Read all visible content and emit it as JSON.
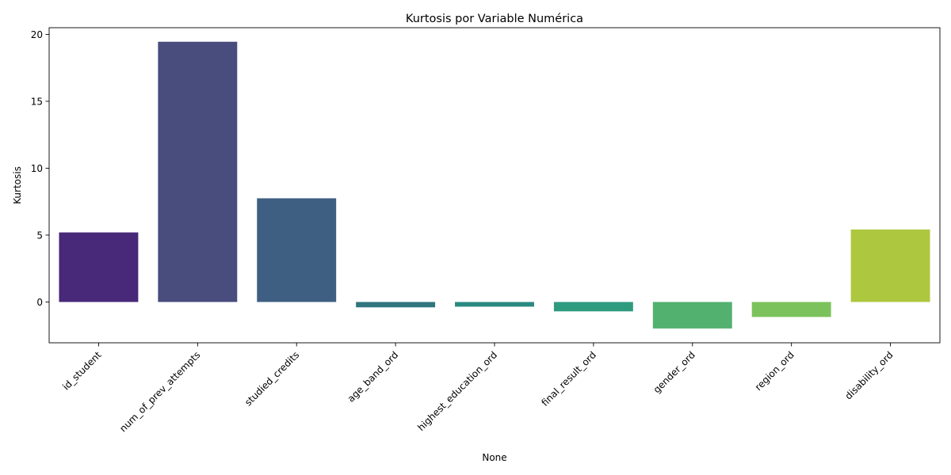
{
  "chart_data": {
    "type": "bar",
    "title": "Kurtosis por Variable Numérica",
    "xlabel": "None",
    "ylabel": "Kurtosis",
    "categories": [
      "id_student",
      "num_of_prev_attempts",
      "studied_credits",
      "age_band_ord",
      "highest_education_ord",
      "final_result_ord",
      "gender_ord",
      "region_ord",
      "disability_ord"
    ],
    "values": [
      5.2,
      19.45,
      7.75,
      -0.4,
      -0.35,
      -0.7,
      -1.98,
      -1.12,
      5.42
    ],
    "colors": [
      "#482878",
      "#484d7e",
      "#3e5f82",
      "#31757f",
      "#2a8a80",
      "#2e9b7e",
      "#52b16f",
      "#7cc25c",
      "#adc83e"
    ],
    "yticks": [
      0,
      5,
      10,
      15,
      20
    ],
    "ylim": [
      -3.05,
      20.5
    ],
    "grid": false,
    "tick_rotation": 45
  }
}
